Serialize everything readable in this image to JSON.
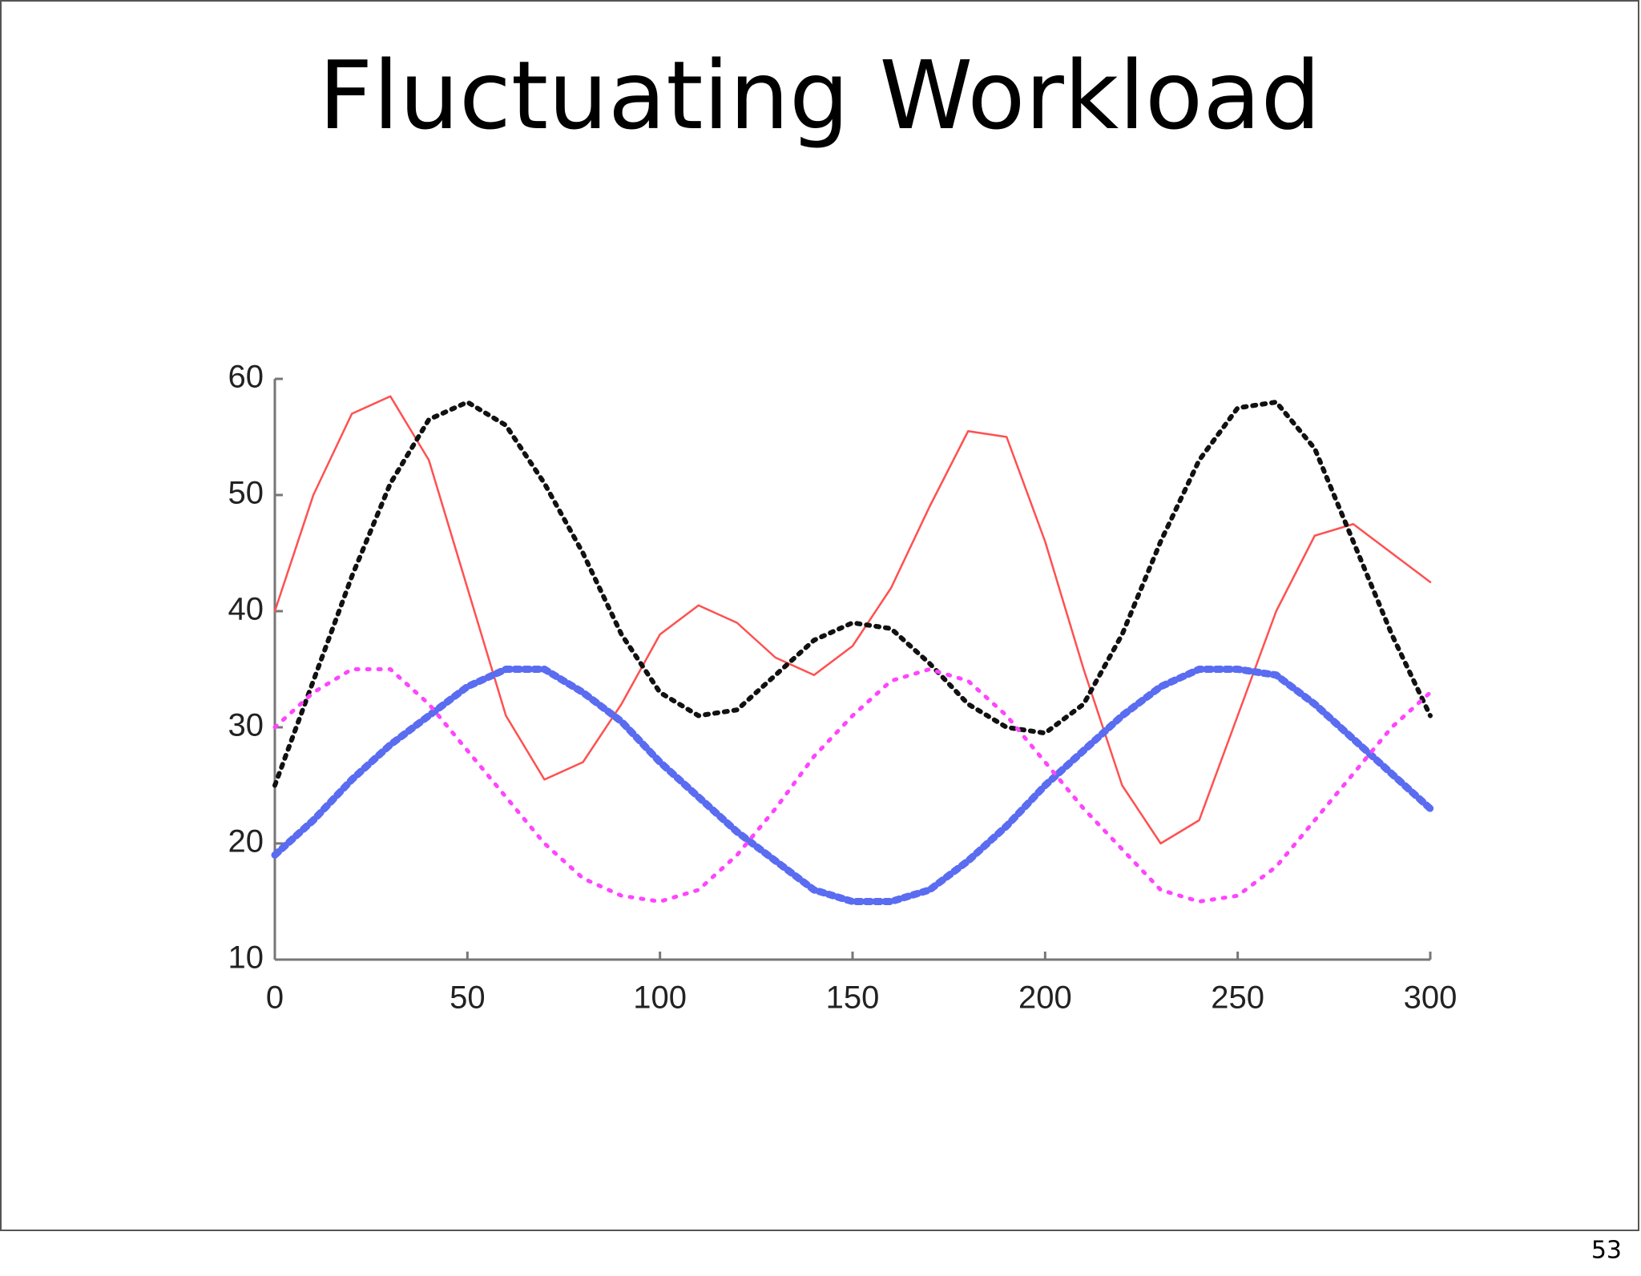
{
  "chart_data": {
    "type": "line",
    "title": "Fluctuating Workload",
    "x": [
      0,
      10,
      20,
      30,
      40,
      50,
      60,
      70,
      80,
      90,
      100,
      110,
      120,
      130,
      140,
      150,
      160,
      170,
      180,
      190,
      200,
      210,
      220,
      230,
      240,
      250,
      260,
      270,
      280,
      290,
      300
    ],
    "series": [
      {
        "color": "#ff5050",
        "style": "solid",
        "values": [
          40,
          50,
          57,
          58.5,
          53,
          42,
          31,
          25.5,
          27,
          32,
          38,
          40.5,
          39,
          36,
          34.5,
          37,
          42,
          49,
          55.5,
          55,
          46,
          35,
          25,
          20,
          22,
          31,
          40,
          46.5,
          47.5,
          45,
          42.5
        ]
      },
      {
        "color": "#111111",
        "style": "dots",
        "values": [
          25,
          34,
          43,
          51,
          56.5,
          58,
          56,
          51,
          45,
          38,
          33,
          31,
          31.5,
          34.5,
          37.5,
          39,
          38.5,
          35.5,
          32,
          30,
          29.5,
          32,
          38,
          46,
          53,
          57.5,
          58,
          54,
          46,
          38,
          31
        ]
      },
      {
        "color": "#5a6cf0",
        "style": "stars",
        "values": [
          19,
          22,
          25.5,
          28.5,
          31,
          33.5,
          35,
          35,
          33,
          30.5,
          27,
          24,
          21,
          18.5,
          16,
          15,
          15,
          16,
          18.5,
          21.5,
          25,
          28,
          31,
          33.5,
          35,
          35,
          34.5,
          32,
          29,
          26,
          23
        ]
      },
      {
        "color": "#ff44ff",
        "style": "dotted",
        "values": [
          30,
          33,
          35,
          35,
          32,
          28,
          24,
          20,
          17,
          15.5,
          15,
          16,
          19,
          23,
          27.5,
          31,
          34,
          35,
          34,
          31,
          27,
          23,
          19.5,
          16,
          15,
          15.5,
          18,
          22,
          26,
          30,
          33
        ]
      }
    ],
    "xlim": [
      0,
      300
    ],
    "xticks": [
      0,
      50,
      100,
      150,
      200,
      250,
      300
    ],
    "ylim": [
      10,
      60
    ],
    "yticks": [
      10,
      20,
      30,
      40,
      50,
      60
    ]
  },
  "slide_number": "53"
}
